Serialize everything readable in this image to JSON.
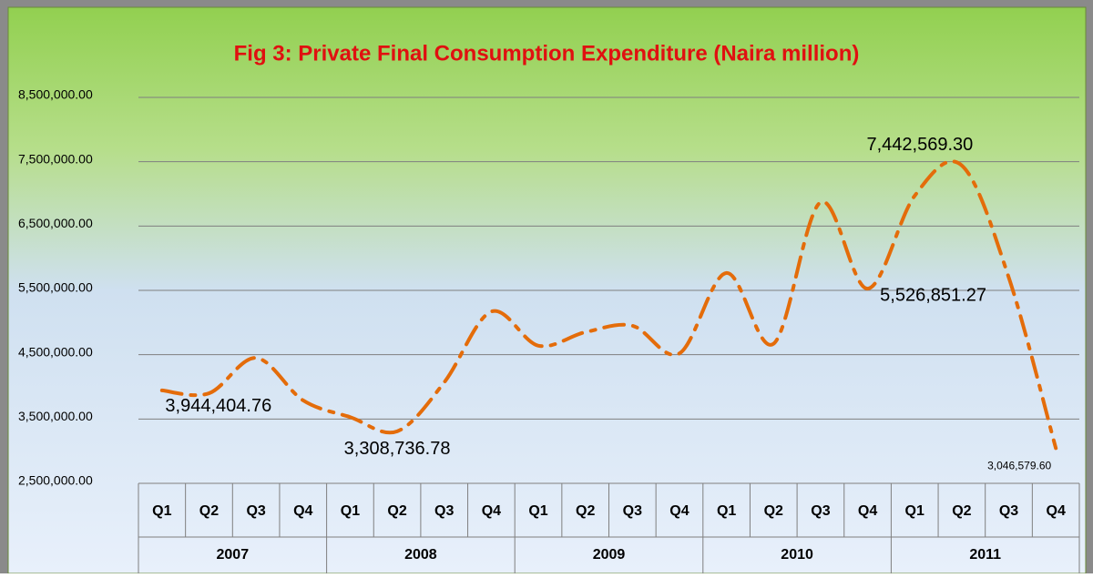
{
  "chart_data": {
    "type": "line",
    "title": "Fig 3: Private Final Consumption Expenditure (Naira million)",
    "categories": [
      "Q1",
      "Q2",
      "Q3",
      "Q4",
      "Q1",
      "Q2",
      "Q3",
      "Q4",
      "Q1",
      "Q2",
      "Q3",
      "Q4",
      "Q1",
      "Q2",
      "Q3",
      "Q4",
      "Q1",
      "Q2",
      "Q3",
      "Q4"
    ],
    "category_groups": [
      "2007",
      "2008",
      "2009",
      "2010",
      "2011"
    ],
    "series": [
      {
        "name": "Private Final Consumption Expenditure",
        "color": "#e46c0a",
        "values": [
          3944404.76,
          3900000,
          4450000,
          3790000,
          3530000,
          3308736.78,
          4070000,
          5170000,
          4640000,
          4850000,
          4950000,
          4520000,
          5770000,
          4670000,
          6870000,
          5526851.27,
          6970000,
          7442569.3,
          5700000,
          3046579.6
        ],
        "value_labels": [
          "3,944,404.76",
          null,
          null,
          null,
          null,
          "3,308,736.78",
          null,
          null,
          null,
          null,
          null,
          null,
          null,
          null,
          null,
          "5,526,851.27",
          null,
          "7,442,569.30",
          null,
          "3,046,579.60"
        ]
      }
    ],
    "ylim": [
      2500000,
      8500000
    ],
    "yticks": [
      {
        "value": 2500000,
        "label": "2,500,000.00"
      },
      {
        "value": 3500000,
        "label": "3,500,000.00"
      },
      {
        "value": 4500000,
        "label": "4,500,000.00"
      },
      {
        "value": 5500000,
        "label": "5,500,000.00"
      },
      {
        "value": 6500000,
        "label": "6,500,000.00"
      },
      {
        "value": 7500000,
        "label": "7,500,000.00"
      },
      {
        "value": 8500000,
        "label": "8,500,000.00"
      }
    ],
    "grid": true
  }
}
